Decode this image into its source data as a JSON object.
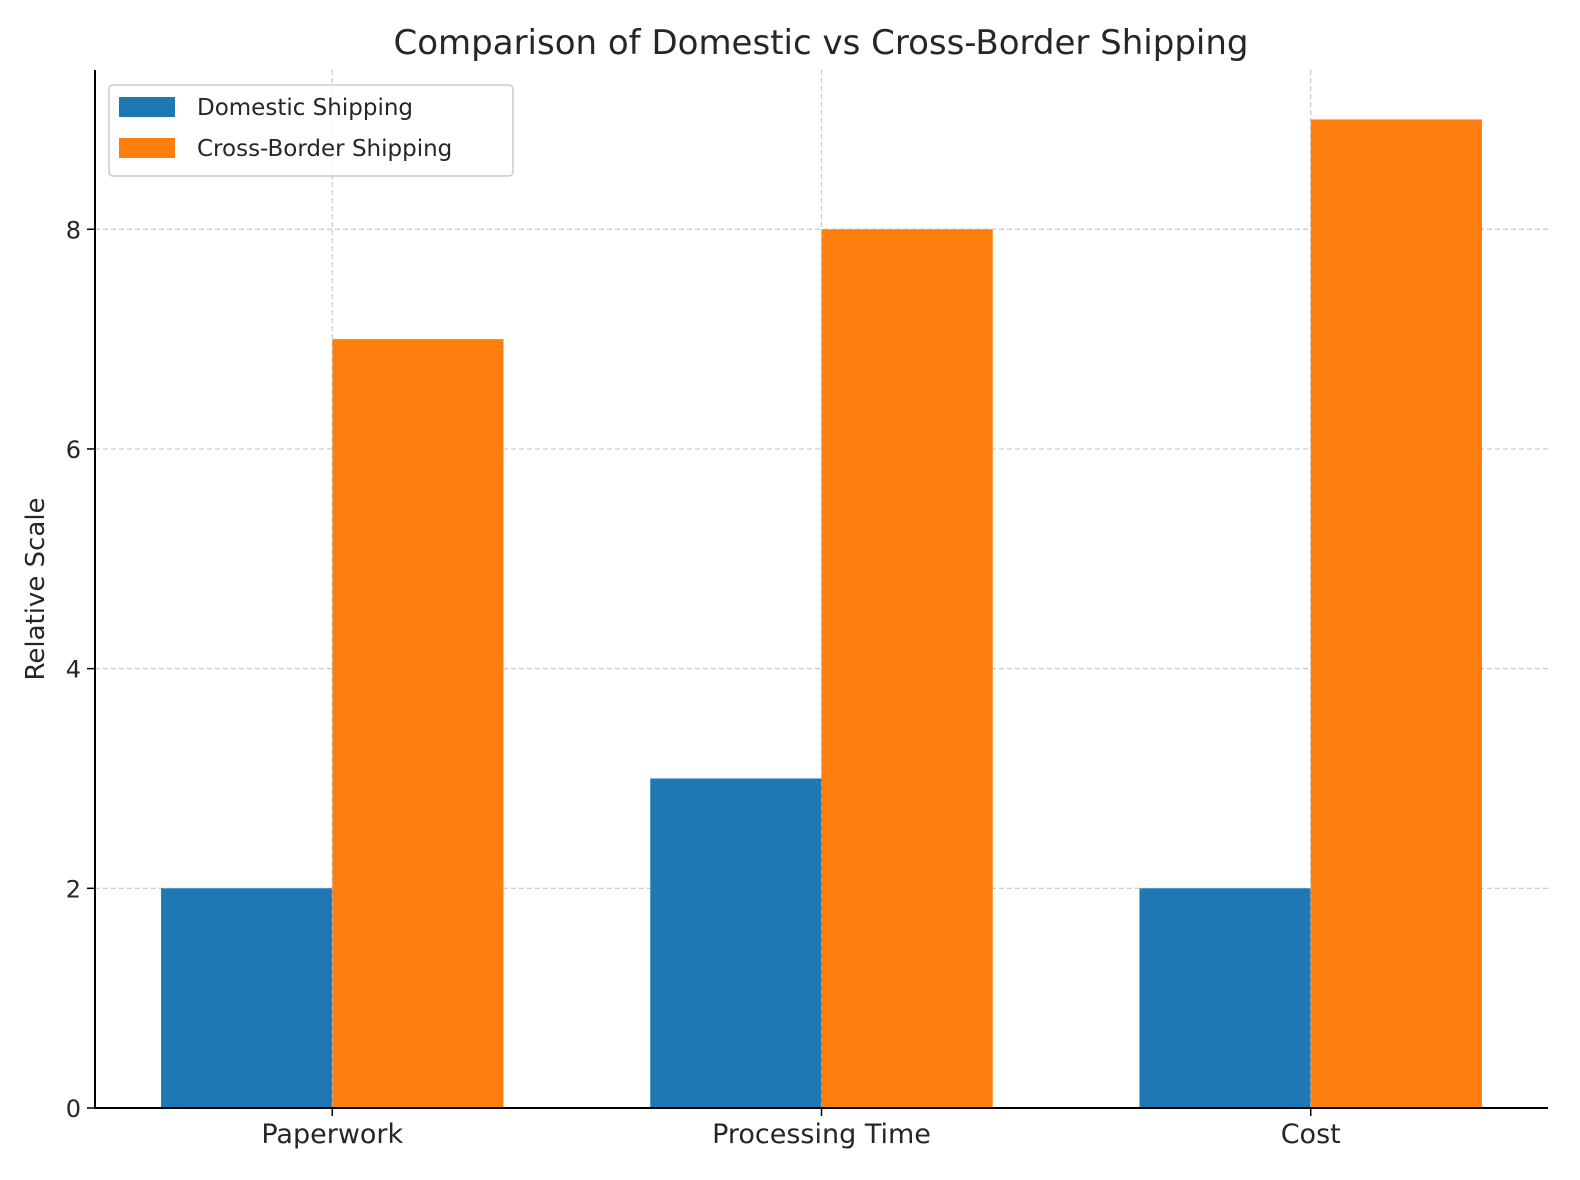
{
  "chart_data": {
    "type": "bar",
    "title": "Comparison of Domestic vs Cross-Border Shipping",
    "xlabel": "",
    "ylabel": "Relative Scale",
    "categories": [
      "Paperwork",
      "Processing Time",
      "Cost"
    ],
    "series": [
      {
        "name": "Domestic Shipping",
        "values": [
          2,
          3,
          2
        ],
        "color": "#1f77b4"
      },
      {
        "name": "Cross-Border Shipping",
        "values": [
          7,
          8,
          9
        ],
        "color": "#ff7f0e"
      }
    ],
    "ylim": [
      0,
      9.45
    ],
    "yticks": [
      0,
      2,
      4,
      6,
      8
    ],
    "grid": true,
    "legend": "top-left"
  }
}
